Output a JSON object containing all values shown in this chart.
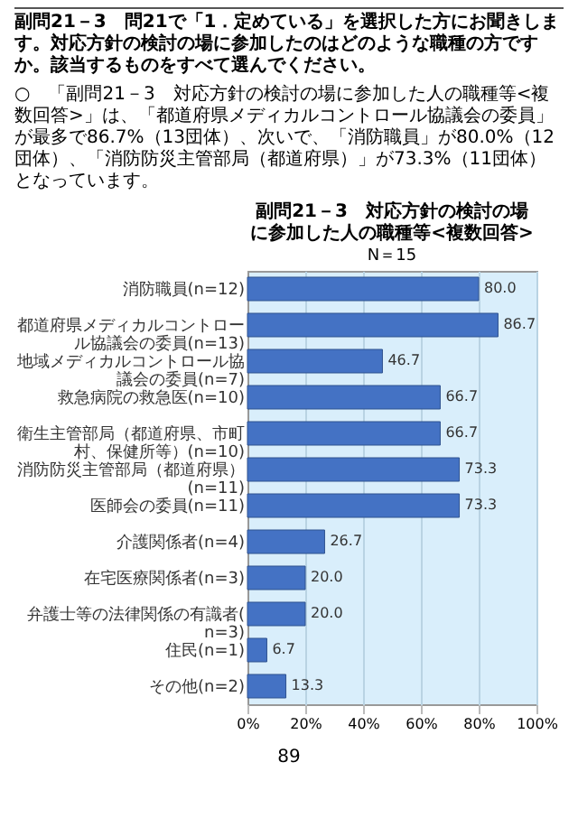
{
  "chart_data": {
    "type": "bar",
    "orientation": "horizontal",
    "title": "副問21－3　対応方針の検討の場に参加した人の職種等<複数回答>",
    "subtitle": "N＝15",
    "annotations": [
      "副問21－3　問21で「1．定めている」を選択した方にお聞きします。対応方針の検討の場に参加したのはどのような職種の方ですか。該当するものをすべて選んでください。",
      "○　「副問21－3　対応方針の検討の場に参加した人の職種等<複数回答>」は、「都道府県メディカルコントロール協議会の委員」が最多で86.7%（13団体）、次いで、「消防職員」が80.0%（12団体）、「消防防災主管部局（都道府県）」が73.3%（11団体）となっています。",
      "89"
    ],
    "categories": [
      "消防職員(n=12)",
      "都道府県メディカルコントロール協議会の委員(n=13)",
      "地域メディカルコントロール協議会の委員(n=7)",
      "救急病院の救急医(n=10)",
      "衛生主管部局（都道府県、市町村、保健所等）(n=10)",
      "消防防災主管部局（都道府県）(n=11)",
      "医師会の委員(n=11)",
      "介護関係者(n=4)",
      "在宅医療関係者(n=3)",
      "弁護士等の法律関係の有識者(n=3)",
      "住民(n=1)",
      "その他(n=2)"
    ],
    "values": [
      80.0,
      86.7,
      46.7,
      66.7,
      66.7,
      73.3,
      73.3,
      26.7,
      20.0,
      20.0,
      6.7,
      13.3
    ],
    "color": "#4472c4",
    "value_labels": [
      "80.0",
      "86.7",
      "46.7",
      "66.7",
      "66.7",
      "73.3",
      "73.3",
      "26.7",
      "20.0",
      "20.0",
      "6.7",
      "13.3"
    ],
    "xlim": [
      0,
      100
    ],
    "xticks": [
      {
        "value": 0,
        "label": "0%"
      },
      {
        "value": 20,
        "label": "20%"
      },
      {
        "value": 40,
        "label": "40%"
      },
      {
        "value": 60,
        "label": "60%"
      },
      {
        "value": 80,
        "label": "80%"
      },
      {
        "value": 100,
        "label": "100%"
      }
    ],
    "grid": "x"
  }
}
